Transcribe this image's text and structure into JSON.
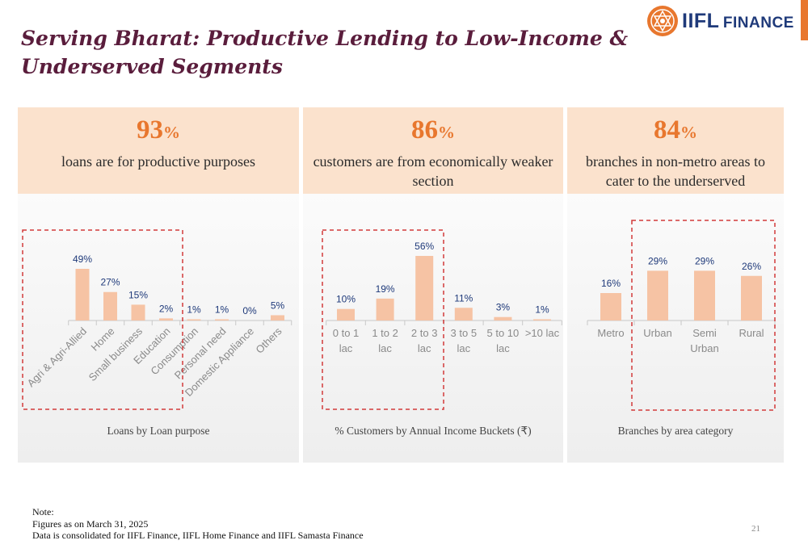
{
  "title": "Serving Bharat: Productive Lending to Low-Income & Underserved Segments",
  "logo": {
    "line1": "IIFL",
    "line2": "FINANCE"
  },
  "colors": {
    "accent": "#e8772e",
    "bar": "#f6c3a4",
    "title": "#5a1d3c",
    "value_label": "#1f3a7a",
    "highlight_box": "#d23a3a"
  },
  "panels": [
    {
      "stat_number": "93",
      "stat_suffix": "%",
      "stat_text": "loans are for productive purposes"
    },
    {
      "stat_number": "86",
      "stat_suffix": "%",
      "stat_text": "customers are from economically weaker section"
    },
    {
      "stat_number": "84",
      "stat_suffix": "%",
      "stat_text": "branches in non-metro areas to cater to the underserved"
    }
  ],
  "chart_data": [
    {
      "type": "bar",
      "title": "Loans by Loan purpose",
      "categories": [
        "Agri & Agri-Allied",
        "Home",
        "Small business",
        "Education",
        "Consumption",
        "Personal need",
        "Domestic Appliance",
        "Others"
      ],
      "values": [
        49,
        27,
        15,
        2,
        1,
        1,
        0,
        5
      ],
      "value_labels": [
        "49%",
        "27%",
        "15%",
        "2%",
        "1%",
        "1%",
        "0%",
        "5%"
      ],
      "label_rotation": "diagonal",
      "highlighted_categories": [
        "Agri & Agri-Allied",
        "Home",
        "Small business",
        "Education"
      ]
    },
    {
      "type": "bar",
      "title": "% Customers by Annual Income Buckets (₹)",
      "categories": [
        "0 to 1 lac",
        "1 to 2 lac",
        "2 to 3 lac",
        "3 to 5 lac",
        "5 to 10 lac",
        ">10 lac"
      ],
      "category_lines": [
        [
          "0 to 1",
          "lac"
        ],
        [
          "1 to 2",
          "lac"
        ],
        [
          "2 to 3",
          "lac"
        ],
        [
          "3 to 5",
          "lac"
        ],
        [
          "5 to 10",
          "lac"
        ],
        [
          ">10 lac"
        ]
      ],
      "values": [
        10,
        19,
        56,
        11,
        3,
        1
      ],
      "value_labels": [
        "10%",
        "19%",
        "56%",
        "11%",
        "3%",
        "1%"
      ],
      "highlighted_categories": [
        "0 to 1 lac",
        "1 to 2 lac",
        "2 to 3 lac"
      ]
    },
    {
      "type": "bar",
      "title": "Branches by area category",
      "categories": [
        "Metro",
        "Urban",
        "Semi Urban",
        "Rural"
      ],
      "category_lines": [
        [
          "Metro"
        ],
        [
          "Urban"
        ],
        [
          "Semi",
          "Urban"
        ],
        [
          "Rural"
        ]
      ],
      "values": [
        16,
        29,
        29,
        26
      ],
      "value_labels": [
        "16%",
        "29%",
        "29%",
        "26%"
      ],
      "highlighted_categories": [
        "Urban",
        "Semi Urban",
        "Rural"
      ]
    }
  ],
  "footer": {
    "note": "Note:",
    "line1": "Figures as on March 31, 2025",
    "line2": "Data is consolidated for IIFL Finance, IIFL Home Finance and IIFL Samasta Finance"
  },
  "page_number": "21"
}
